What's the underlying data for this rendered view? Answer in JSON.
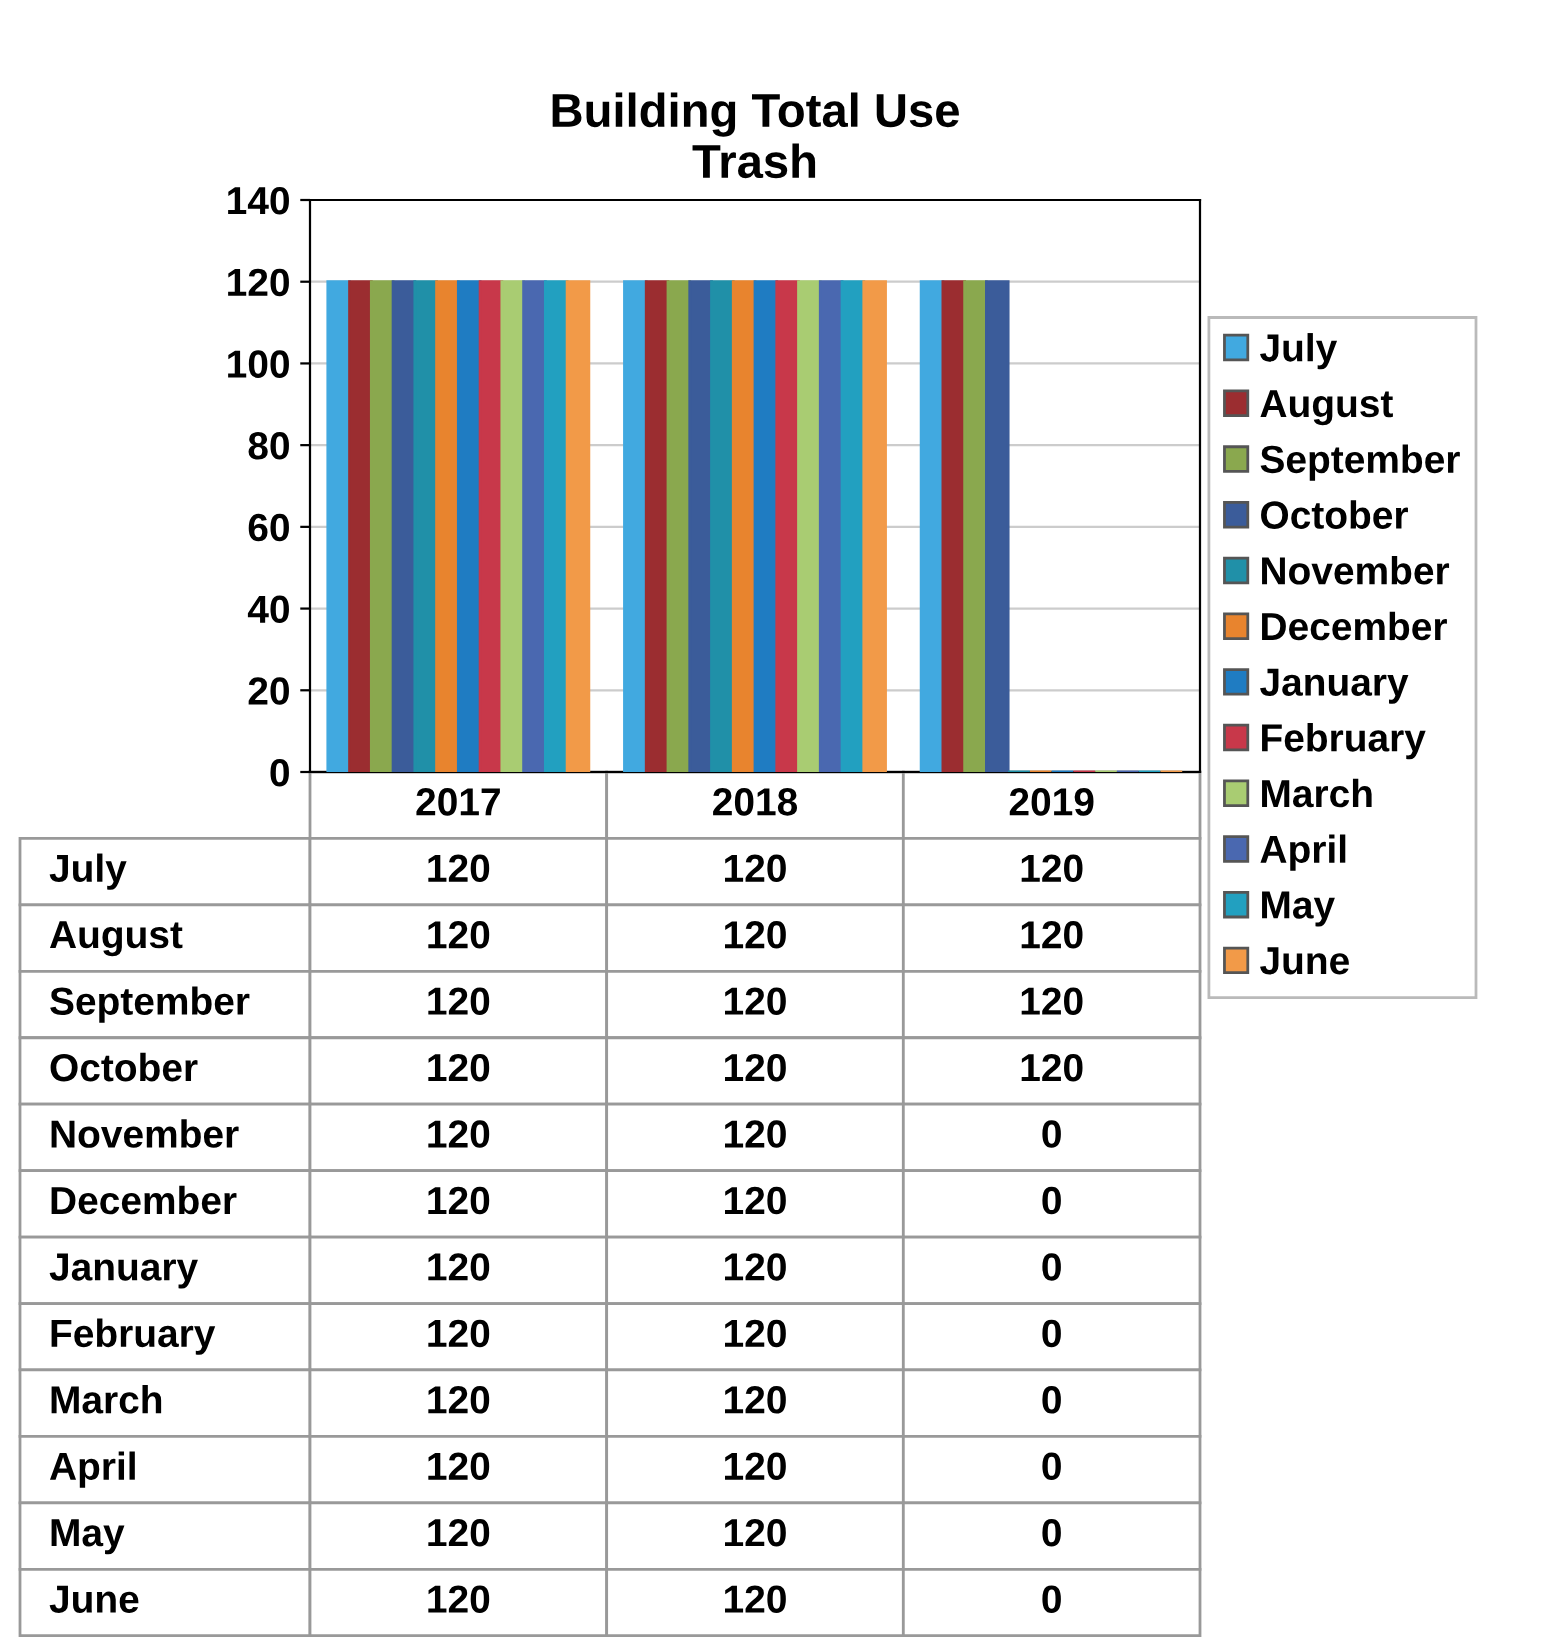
{
  "chart_data": {
    "type": "bar",
    "title": "Building Total Use\nTrash",
    "categories": [
      "2017",
      "2018",
      "2019"
    ],
    "series": [
      {
        "name": "July",
        "color": "#41a9e0",
        "values": [
          120,
          120,
          120
        ]
      },
      {
        "name": "August",
        "color": "#9b2d30",
        "values": [
          120,
          120,
          120
        ]
      },
      {
        "name": "September",
        "color": "#8aa84e",
        "values": [
          120,
          120,
          120
        ]
      },
      {
        "name": "October",
        "color": "#3b5c9a",
        "values": [
          120,
          120,
          120
        ]
      },
      {
        "name": "November",
        "color": "#2090a8",
        "values": [
          120,
          120,
          0
        ]
      },
      {
        "name": "December",
        "color": "#e8842e",
        "values": [
          120,
          120,
          0
        ]
      },
      {
        "name": "January",
        "color": "#1f7cc2",
        "values": [
          120,
          120,
          0
        ]
      },
      {
        "name": "February",
        "color": "#c8384a",
        "values": [
          120,
          120,
          0
        ]
      },
      {
        "name": "March",
        "color": "#a9cc72",
        "values": [
          120,
          120,
          0
        ]
      },
      {
        "name": "April",
        "color": "#4a68b0",
        "values": [
          120,
          120,
          0
        ]
      },
      {
        "name": "May",
        "color": "#22a0c0",
        "values": [
          120,
          120,
          0
        ]
      },
      {
        "name": "June",
        "color": "#f29a48",
        "values": [
          120,
          120,
          0
        ]
      }
    ],
    "ylim": [
      0,
      140
    ],
    "yticks": [
      0,
      20,
      40,
      60,
      80,
      100,
      120,
      140
    ],
    "grid": "y",
    "legend": "right",
    "data_labels": true
  }
}
